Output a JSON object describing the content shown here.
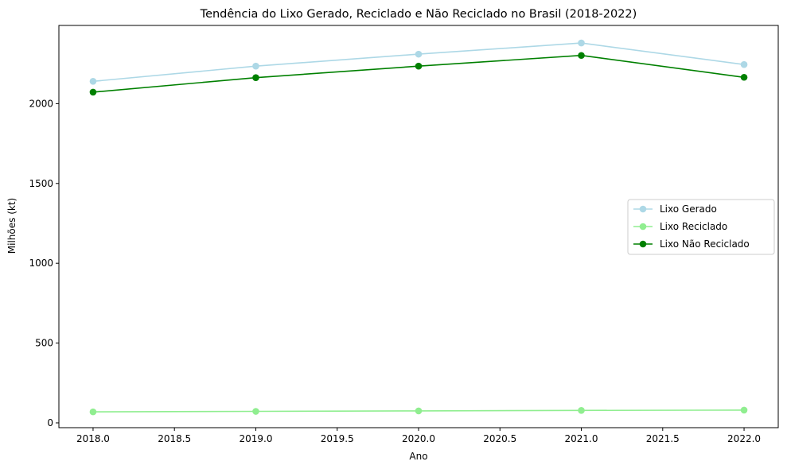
{
  "chart_data": {
    "type": "line",
    "title": "Tendência do Lixo Gerado, Reciclado e Não Reciclado no Brasil (2018-2022)",
    "xlabel": "Ano",
    "ylabel": "Milhões (kt)",
    "x": [
      2018,
      2019,
      2020,
      2021,
      2022
    ],
    "xlim": [
      2017.79,
      2022.21
    ],
    "ylim": [
      -30,
      2490
    ],
    "xticks": [
      "2018.0",
      "2018.5",
      "2019.0",
      "2019.5",
      "2020.0",
      "2020.5",
      "2021.0",
      "2021.5",
      "2022.0"
    ],
    "xtick_values": [
      2018.0,
      2018.5,
      2019.0,
      2019.5,
      2020.0,
      2020.5,
      2021.0,
      2021.5,
      2022.0
    ],
    "yticks": [
      "0",
      "500",
      "1000",
      "1500",
      "2000"
    ],
    "ytick_values": [
      0,
      500,
      1000,
      1500,
      2000
    ],
    "grid": false,
    "legend_position": "center-right",
    "series": [
      {
        "name": "Lixo Gerado",
        "color": "#add8e6",
        "marker": "circle",
        "values": [
          2140,
          2235,
          2310,
          2380,
          2245
        ]
      },
      {
        "name": "Lixo Reciclado",
        "color": "#90ee90",
        "marker": "circle",
        "values": [
          69,
          72,
          75,
          78,
          80
        ]
      },
      {
        "name": "Lixo Não Reciclado",
        "color": "#008000",
        "marker": "circle",
        "values": [
          2072,
          2163,
          2235,
          2302,
          2165
        ]
      }
    ]
  }
}
